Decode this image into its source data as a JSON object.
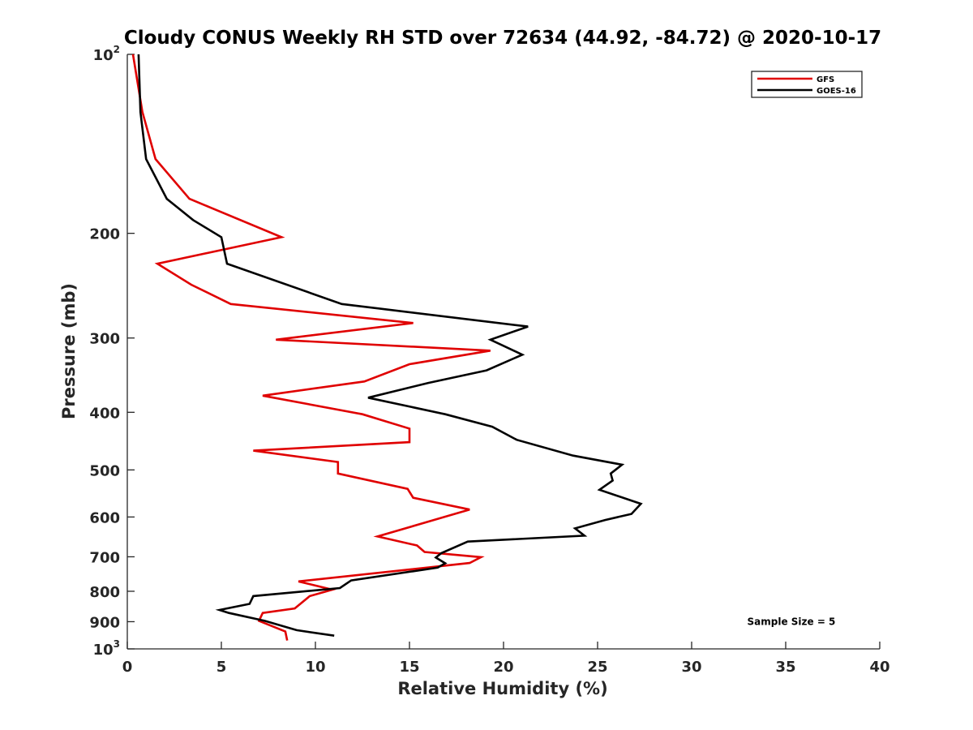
{
  "chart_data": {
    "type": "line",
    "title": "Cloudy CONUS Weekly RH STD over 72634 (44.92, -84.72) @ 2020-10-17",
    "xlabel": "Relative Humidity (%)",
    "ylabel": "Pressure (mb)",
    "xlim": [
      0,
      40
    ],
    "ylim": [
      100,
      1000
    ],
    "y_scale": "log",
    "y_reversed": true,
    "grid": false,
    "legend_position": "top-right",
    "x_ticks": [
      "0",
      "5",
      "10",
      "15",
      "20",
      "25",
      "30",
      "35",
      "40"
    ],
    "y_ticks": [
      {
        "value": 100,
        "label": "10",
        "sup": "2"
      },
      {
        "value": 200,
        "label": "200"
      },
      {
        "value": 300,
        "label": "300"
      },
      {
        "value": 400,
        "label": "400"
      },
      {
        "value": 500,
        "label": "500"
      },
      {
        "value": 600,
        "label": "600"
      },
      {
        "value": 700,
        "label": "700"
      },
      {
        "value": 800,
        "label": "800"
      },
      {
        "value": 900,
        "label": "900"
      },
      {
        "value": 1000,
        "label": "10",
        "sup": "3"
      }
    ],
    "series": [
      {
        "name": "GFS",
        "color": "#e00000",
        "points": [
          [
            0.3,
            100
          ],
          [
            0.8,
            125
          ],
          [
            1.5,
            150
          ],
          [
            3.3,
            175
          ],
          [
            8.2,
            203
          ],
          [
            1.6,
            225
          ],
          [
            3.4,
            244
          ],
          [
            5.5,
            263
          ],
          [
            15.2,
            283
          ],
          [
            7.9,
            302
          ],
          [
            19.3,
            315
          ],
          [
            15.0,
            332
          ],
          [
            12.6,
            355
          ],
          [
            7.2,
            375
          ],
          [
            12.5,
            403
          ],
          [
            15.0,
            426
          ],
          [
            15.0,
            449
          ],
          [
            6.7,
            464
          ],
          [
            11.2,
            485
          ],
          [
            11.2,
            507
          ],
          [
            14.9,
            538
          ],
          [
            15.2,
            557
          ],
          [
            18.2,
            583
          ],
          [
            13.3,
            647
          ],
          [
            15.4,
            670
          ],
          [
            15.8,
            687
          ],
          [
            18.8,
            701
          ],
          [
            18.2,
            717
          ],
          [
            9.1,
            770
          ],
          [
            10.9,
            795
          ],
          [
            9.7,
            815
          ],
          [
            8.9,
            855
          ],
          [
            7.2,
            870
          ],
          [
            7.0,
            897
          ],
          [
            8.4,
            935
          ],
          [
            8.5,
            968
          ]
        ]
      },
      {
        "name": "GOES-16",
        "color": "#000000",
        "points": [
          [
            0.6,
            100
          ],
          [
            0.7,
            125
          ],
          [
            1.0,
            150
          ],
          [
            2.1,
            175
          ],
          [
            3.5,
            190
          ],
          [
            5.0,
            203
          ],
          [
            5.3,
            225
          ],
          [
            11.4,
            263
          ],
          [
            21.3,
            287
          ],
          [
            19.3,
            302
          ],
          [
            21.0,
            320
          ],
          [
            19.1,
            340
          ],
          [
            16.0,
            357
          ],
          [
            12.8,
            378
          ],
          [
            16.9,
            403
          ],
          [
            19.4,
            423
          ],
          [
            20.7,
            445
          ],
          [
            23.7,
            473
          ],
          [
            26.3,
            490
          ],
          [
            25.7,
            507
          ],
          [
            25.8,
            521
          ],
          [
            25.1,
            540
          ],
          [
            27.3,
            570
          ],
          [
            26.8,
            593
          ],
          [
            25.4,
            607
          ],
          [
            23.8,
            627
          ],
          [
            24.3,
            645
          ],
          [
            18.1,
            660
          ],
          [
            16.7,
            690
          ],
          [
            16.4,
            702
          ],
          [
            16.9,
            718
          ],
          [
            16.5,
            730
          ],
          [
            11.9,
            767
          ],
          [
            11.3,
            790
          ],
          [
            6.7,
            815
          ],
          [
            6.5,
            840
          ],
          [
            4.9,
            860
          ],
          [
            5.4,
            870
          ],
          [
            7.3,
            897
          ],
          [
            9.0,
            930
          ],
          [
            11.0,
            950
          ]
        ]
      }
    ],
    "annotations": [
      {
        "text": "Sample Size = 5",
        "x": 35.3,
        "y": 900
      }
    ]
  }
}
